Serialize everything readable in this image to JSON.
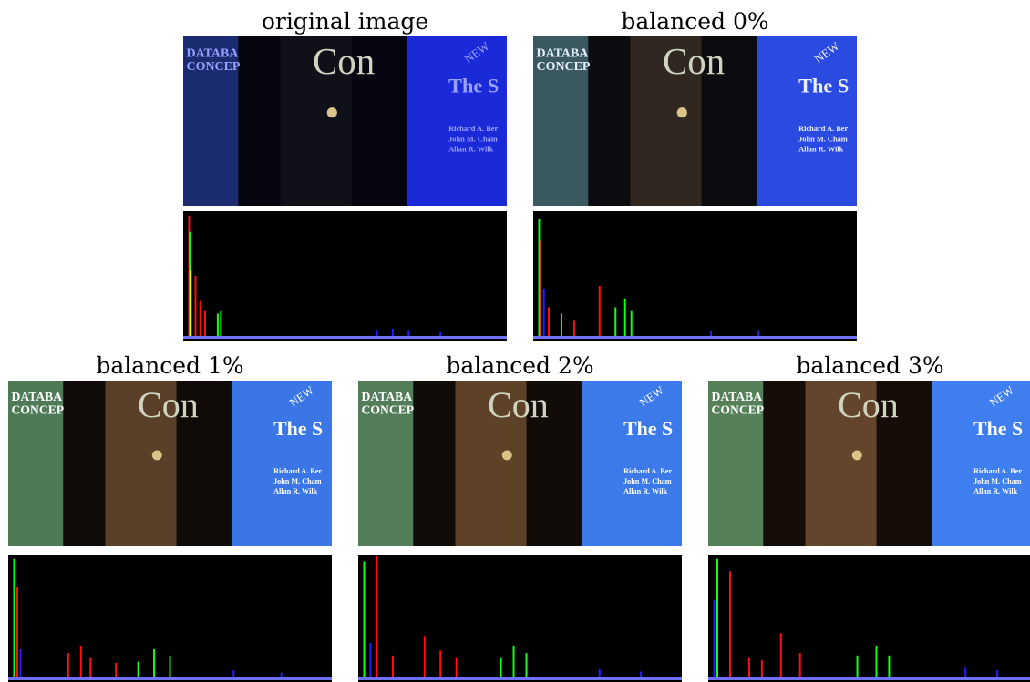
{
  "figure": {
    "panels": [
      {
        "caption": "original image",
        "photo": {
          "left_book_text": "DATABA\nCONCEP",
          "center_book_text": "Con",
          "right_book_badge": "NEW",
          "right_book_title": "The S",
          "right_book_authors": [
            "Richard A. Ber",
            "John M. Cham",
            "Allan R. Wilk"
          ],
          "palette": {
            "bg": "#101648",
            "left": "#1a2b70",
            "mid_dark": "#05050f",
            "spine": "#101018",
            "right_book": "#1a2ad8",
            "text": "#9aa0ff"
          }
        },
        "histogram": {
          "bars": [
            {
              "ch": "red",
              "x": 0.01,
              "h": 0.98
            },
            {
              "ch": "green",
              "x": 0.012,
              "h": 0.85
            },
            {
              "ch": "yellow",
              "x": 0.015,
              "h": 0.55
            },
            {
              "ch": "red",
              "x": 0.03,
              "h": 0.5
            },
            {
              "ch": "red",
              "x": 0.045,
              "h": 0.3
            },
            {
              "ch": "red",
              "x": 0.06,
              "h": 0.22
            },
            {
              "ch": "green",
              "x": 0.1,
              "h": 0.2
            },
            {
              "ch": "green",
              "x": 0.11,
              "h": 0.22
            },
            {
              "ch": "blue",
              "x": 0.6,
              "h": 0.07
            },
            {
              "ch": "blue",
              "x": 0.65,
              "h": 0.08
            },
            {
              "ch": "blue",
              "x": 0.7,
              "h": 0.07
            },
            {
              "ch": "blue",
              "x": 0.8,
              "h": 0.05
            }
          ]
        }
      },
      {
        "caption": "balanced 0%",
        "photo": {
          "left_book_text": "DATABA\nCONCEP",
          "center_book_text": "Con",
          "right_book_badge": "NEW",
          "right_book_title": "The S",
          "right_book_authors": [
            "Richard A. Ber",
            "John M. Cham",
            "Allan R. Wilk"
          ],
          "palette": {
            "bg": "#1a1f40",
            "left": "#3a5a60",
            "mid_dark": "#0b0b10",
            "spine": "#302820",
            "right_book": "#2a4ae0",
            "text": "#e8eeff"
          }
        },
        "histogram": {
          "bars": [
            {
              "ch": "green",
              "x": 0.01,
              "h": 0.95
            },
            {
              "ch": "red",
              "x": 0.015,
              "h": 0.78
            },
            {
              "ch": "blue",
              "x": 0.025,
              "h": 0.4
            },
            {
              "ch": "red",
              "x": 0.04,
              "h": 0.25
            },
            {
              "ch": "green",
              "x": 0.08,
              "h": 0.2
            },
            {
              "ch": "red",
              "x": 0.12,
              "h": 0.15
            },
            {
              "ch": "red",
              "x": 0.2,
              "h": 0.42
            },
            {
              "ch": "green",
              "x": 0.25,
              "h": 0.25
            },
            {
              "ch": "green",
              "x": 0.28,
              "h": 0.32
            },
            {
              "ch": "green",
              "x": 0.3,
              "h": 0.22
            },
            {
              "ch": "blue",
              "x": 0.55,
              "h": 0.06
            },
            {
              "ch": "blue",
              "x": 0.7,
              "h": 0.07
            }
          ]
        }
      },
      {
        "caption": "balanced 1%",
        "photo": {
          "left_book_text": "DATABA\nCONCEP",
          "center_book_text": "Con",
          "right_book_badge": "NEW",
          "right_book_title": "The S",
          "right_book_authors": [
            "Richard A. Ber",
            "John M. Cham",
            "Allan R. Wilk"
          ],
          "palette": {
            "bg": "#2b2a30",
            "left": "#4e7a55",
            "mid_dark": "#100b08",
            "spine": "#5a4028",
            "right_book": "#3a76e6",
            "text": "#ffffff"
          }
        },
        "histogram": {
          "bars": [
            {
              "ch": "green",
              "x": 0.01,
              "h": 0.98
            },
            {
              "ch": "red",
              "x": 0.02,
              "h": 0.75
            },
            {
              "ch": "blue",
              "x": 0.03,
              "h": 0.25
            },
            {
              "ch": "red",
              "x": 0.18,
              "h": 0.22
            },
            {
              "ch": "red",
              "x": 0.22,
              "h": 0.28
            },
            {
              "ch": "red",
              "x": 0.25,
              "h": 0.18
            },
            {
              "ch": "green",
              "x": 0.45,
              "h": 0.25
            },
            {
              "ch": "green",
              "x": 0.5,
              "h": 0.2
            },
            {
              "ch": "green",
              "x": 0.4,
              "h": 0.15
            },
            {
              "ch": "blue",
              "x": 0.7,
              "h": 0.08
            },
            {
              "ch": "blue",
              "x": 0.85,
              "h": 0.06
            },
            {
              "ch": "red",
              "x": 0.33,
              "h": 0.14
            }
          ]
        }
      },
      {
        "caption": "balanced 2%",
        "photo": {
          "left_book_text": "DATABA\nCONCEP",
          "center_book_text": "Con",
          "right_book_badge": "NEW",
          "right_book_title": "The S",
          "right_book_authors": [
            "Richard A. Ber",
            "John M. Cham",
            "Allan R. Wilk"
          ],
          "palette": {
            "bg": "#2b2a30",
            "left": "#527d58",
            "mid_dark": "#120c08",
            "spine": "#5e4228",
            "right_book": "#3c7aea",
            "text": "#ffffff"
          }
        },
        "histogram": {
          "bars": [
            {
              "ch": "green",
              "x": 0.01,
              "h": 0.96
            },
            {
              "ch": "red",
              "x": 0.05,
              "h": 1.0
            },
            {
              "ch": "blue",
              "x": 0.03,
              "h": 0.3
            },
            {
              "ch": "red",
              "x": 0.2,
              "h": 0.35
            },
            {
              "ch": "red",
              "x": 0.25,
              "h": 0.24
            },
            {
              "ch": "red",
              "x": 0.3,
              "h": 0.18
            },
            {
              "ch": "green",
              "x": 0.48,
              "h": 0.28
            },
            {
              "ch": "green",
              "x": 0.52,
              "h": 0.22
            },
            {
              "ch": "green",
              "x": 0.44,
              "h": 0.18
            },
            {
              "ch": "blue",
              "x": 0.75,
              "h": 0.09
            },
            {
              "ch": "blue",
              "x": 0.88,
              "h": 0.07
            },
            {
              "ch": "red",
              "x": 0.1,
              "h": 0.2
            }
          ]
        }
      },
      {
        "caption": "balanced 3%",
        "photo": {
          "left_book_text": "DATABA\nCONCEP",
          "center_book_text": "Con",
          "right_book_badge": "NEW",
          "right_book_title": "The S",
          "right_book_authors": [
            "Richard A. Ber",
            "John M. Cham",
            "Allan R. Wilk"
          ],
          "palette": {
            "bg": "#2b2a30",
            "left": "#558058",
            "mid_dark": "#140d08",
            "spine": "#62452a",
            "right_book": "#3e7eee",
            "text": "#ffffff"
          }
        },
        "histogram": {
          "bars": [
            {
              "ch": "green",
              "x": 0.02,
              "h": 0.98
            },
            {
              "ch": "red",
              "x": 0.06,
              "h": 0.88
            },
            {
              "ch": "blue",
              "x": 0.01,
              "h": 0.65
            },
            {
              "ch": "red",
              "x": 0.22,
              "h": 0.38
            },
            {
              "ch": "red",
              "x": 0.28,
              "h": 0.22
            },
            {
              "ch": "red",
              "x": 0.16,
              "h": 0.16
            },
            {
              "ch": "green",
              "x": 0.52,
              "h": 0.28
            },
            {
              "ch": "green",
              "x": 0.56,
              "h": 0.2
            },
            {
              "ch": "green",
              "x": 0.46,
              "h": 0.2
            },
            {
              "ch": "blue",
              "x": 0.8,
              "h": 0.1
            },
            {
              "ch": "blue",
              "x": 0.9,
              "h": 0.08
            },
            {
              "ch": "red",
              "x": 0.12,
              "h": 0.18
            }
          ]
        }
      }
    ]
  }
}
